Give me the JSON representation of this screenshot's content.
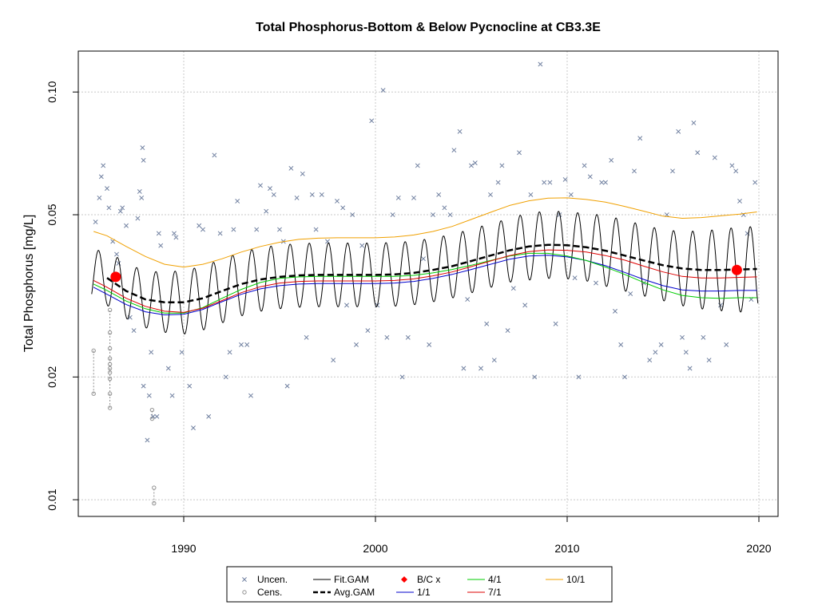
{
  "chart_data": {
    "type": "line",
    "title": "Total Phosphorus-Bottom & Below Pycnocline at CB3.3E",
    "xlabel": "",
    "ylabel": "Total Phosphorus [mg/L]",
    "xlim": [
      1984.5,
      2021.0
    ],
    "ylim": [
      0.0091,
      0.126
    ],
    "log_y": true,
    "grid": true,
    "x_ticks": [
      1990,
      2000,
      2010,
      2020
    ],
    "x_tick_labels": [
      "1990",
      "2000",
      "2010",
      "2020"
    ],
    "y_ticks": [
      0.01,
      0.02,
      0.05,
      0.1
    ],
    "y_tick_labels": [
      "0.01",
      "0.02",
      "0.05",
      "0.10"
    ],
    "legend_position": "bottom",
    "legend": [
      {
        "key": "uncen",
        "label": "Uncen.",
        "style": "x-marker",
        "color": "#7080A0"
      },
      {
        "key": "cens",
        "label": "Cens.",
        "style": "o-marker",
        "color": "#909090"
      },
      {
        "key": "fit",
        "label": "Fit.GAM",
        "style": "line",
        "color": "#000000"
      },
      {
        "key": "avg",
        "label": "Avg.GAM",
        "style": "dashed",
        "color": "#000000"
      },
      {
        "key": "bc",
        "label": "B/C x",
        "style": "diamond",
        "color": "#FF0000"
      },
      {
        "key": "s11",
        "label": "1/1",
        "style": "line",
        "color": "#0000CC"
      },
      {
        "key": "s41",
        "label": "4/1",
        "style": "line",
        "color": "#00CC00"
      },
      {
        "key": "s71",
        "label": "7/1",
        "style": "line",
        "color": "#DD0000"
      },
      {
        "key": "s101",
        "label": "10/1",
        "style": "line",
        "color": "#F0A000"
      }
    ],
    "series": [
      {
        "name": "10/1",
        "color": "#F0A000",
        "x": [
          1985.3,
          1986,
          1987,
          1988,
          1989,
          1990,
          1991,
          1992,
          1993,
          1994,
          1995,
          1996,
          1997,
          1998,
          1999,
          2000,
          2001,
          2002,
          2003,
          2004,
          2005,
          2006,
          2007,
          2008,
          2009,
          2010,
          2011,
          2012,
          2013,
          2014,
          2015,
          2016,
          2017,
          2018,
          2019,
          2019.9
        ],
        "y": [
          0.0455,
          0.0444,
          0.0418,
          0.0395,
          0.0378,
          0.0372,
          0.0378,
          0.039,
          0.0405,
          0.0418,
          0.0428,
          0.0435,
          0.0438,
          0.0439,
          0.0439,
          0.0439,
          0.0441,
          0.0446,
          0.0455,
          0.0468,
          0.0487,
          0.0507,
          0.0527,
          0.0541,
          0.0549,
          0.055,
          0.0545,
          0.0537,
          0.0524,
          0.051,
          0.0496,
          0.049,
          0.0492,
          0.0497,
          0.0502,
          0.0508
        ]
      },
      {
        "name": "7/1",
        "color": "#DD0000",
        "x": [
          1985.3,
          1986,
          1987,
          1988,
          1989,
          1990,
          1991,
          1992,
          1993,
          1994,
          1995,
          1996,
          1997,
          1998,
          1999,
          2000,
          2001,
          2002,
          2003,
          2004,
          2005,
          2006,
          2007,
          2008,
          2009,
          2010,
          2011,
          2012,
          2013,
          2014,
          2015,
          2016,
          2017,
          2018,
          2019,
          2019.9
        ],
        "y": [
          0.0345,
          0.0332,
          0.0312,
          0.0298,
          0.029,
          0.0288,
          0.0295,
          0.0308,
          0.0322,
          0.0333,
          0.034,
          0.0343,
          0.0344,
          0.0344,
          0.0344,
          0.0344,
          0.0345,
          0.0348,
          0.0354,
          0.0362,
          0.0373,
          0.0385,
          0.0397,
          0.0406,
          0.041,
          0.0409,
          0.0405,
          0.0397,
          0.0387,
          0.0374,
          0.0362,
          0.0353,
          0.035,
          0.035,
          0.0351,
          0.0352
        ]
      },
      {
        "name": "4/1",
        "color": "#00CC00",
        "x": [
          1985.3,
          1986,
          1987,
          1988,
          1989,
          1990,
          1991,
          1992,
          1993,
          1994,
          1995,
          1996,
          1997,
          1998,
          1999,
          2000,
          2001,
          2002,
          2003,
          2004,
          2005,
          2006,
          2007,
          2008,
          2009,
          2010,
          2011,
          2012,
          2013,
          2014,
          2015,
          2016,
          2017,
          2018,
          2019,
          2019.9
        ],
        "y": [
          0.0338,
          0.0326,
          0.0307,
          0.0294,
          0.0287,
          0.0287,
          0.0296,
          0.0312,
          0.0328,
          0.0341,
          0.0349,
          0.0352,
          0.0353,
          0.0353,
          0.0353,
          0.0353,
          0.0353,
          0.0355,
          0.036,
          0.0367,
          0.0376,
          0.0386,
          0.0396,
          0.0402,
          0.0402,
          0.0396,
          0.0386,
          0.0372,
          0.0357,
          0.0341,
          0.0327,
          0.0317,
          0.0313,
          0.0312,
          0.0313,
          0.0313
        ]
      },
      {
        "name": "1/1",
        "color": "#0000CC",
        "x": [
          1985.3,
          1986,
          1987,
          1988,
          1989,
          1990,
          1991,
          1992,
          1993,
          1994,
          1995,
          1996,
          1997,
          1998,
          1999,
          2000,
          2001,
          2002,
          2003,
          2004,
          2005,
          2006,
          2007,
          2008,
          2009,
          2010,
          2011,
          2012,
          2013,
          2014,
          2015,
          2016,
          2017,
          2018,
          2019,
          2019.9
        ],
        "y": [
          0.0332,
          0.0319,
          0.0301,
          0.0289,
          0.0284,
          0.0285,
          0.0293,
          0.0306,
          0.0319,
          0.0329,
          0.0335,
          0.0338,
          0.0339,
          0.0339,
          0.0339,
          0.0339,
          0.034,
          0.0343,
          0.0349,
          0.0357,
          0.0367,
          0.0378,
          0.0389,
          0.0396,
          0.0398,
          0.0394,
          0.0386,
          0.0375,
          0.0361,
          0.0347,
          0.0335,
          0.0327,
          0.0325,
          0.0325,
          0.0326,
          0.0326
        ]
      },
      {
        "name": "Avg.GAM",
        "color": "#000000",
        "x": [
          1986,
          1987,
          1988,
          1989,
          1990,
          1991,
          1992,
          1993,
          1994,
          1995,
          1996,
          1997,
          1998,
          1999,
          2000,
          2001,
          2002,
          2003,
          2004,
          2005,
          2006,
          2007,
          2008,
          2009,
          2010,
          2011,
          2012,
          2013,
          2014,
          2015,
          2016,
          2017,
          2018,
          2019,
          2019.9
        ],
        "y": [
          0.035,
          0.0325,
          0.031,
          0.0305,
          0.0305,
          0.0312,
          0.0325,
          0.0338,
          0.0347,
          0.0352,
          0.0355,
          0.0356,
          0.0356,
          0.0356,
          0.0356,
          0.0357,
          0.036,
          0.0366,
          0.0374,
          0.0385,
          0.0397,
          0.0409,
          0.0418,
          0.0422,
          0.0421,
          0.0416,
          0.0408,
          0.0397,
          0.0386,
          0.0376,
          0.0369,
          0.0366,
          0.0366,
          0.0367,
          0.0368
        ]
      },
      {
        "name": "Fit.GAM",
        "color": "#000000",
        "amplitude": [
          0.155,
          0.155,
          0.16,
          0.17,
          0.18,
          0.18,
          0.18,
          0.18,
          0.18,
          0.18,
          0.18,
          0.18,
          0.18,
          0.18,
          0.18,
          0.18,
          0.18,
          0.18,
          0.18,
          0.18,
          0.18,
          0.18,
          0.19,
          0.19,
          0.19,
          0.19,
          0.2,
          0.2,
          0.2,
          0.2,
          0.21,
          0.22,
          0.23,
          0.24,
          0.24
        ],
        "peak_fraction": 0.55,
        "x_range": [
          1985.2,
          2019.95
        ]
      }
    ],
    "bc_points": [
      {
        "x": 1986.45,
        "y": 0.0352
      },
      {
        "x": 2018.85,
        "y": 0.0366
      }
    ],
    "uncensored_points": [
      {
        "x": 1985.4,
        "y": 0.048
      },
      {
        "x": 1985.6,
        "y": 0.055
      },
      {
        "x": 1985.7,
        "y": 0.062
      },
      {
        "x": 1985.8,
        "y": 0.066
      },
      {
        "x": 1986.0,
        "y": 0.058
      },
      {
        "x": 1986.1,
        "y": 0.052
      },
      {
        "x": 1986.3,
        "y": 0.043
      },
      {
        "x": 1986.5,
        "y": 0.04
      },
      {
        "x": 1986.6,
        "y": 0.038
      },
      {
        "x": 1986.7,
        "y": 0.051
      },
      {
        "x": 1986.8,
        "y": 0.052
      },
      {
        "x": 1987.0,
        "y": 0.047
      },
      {
        "x": 1987.2,
        "y": 0.028
      },
      {
        "x": 1987.4,
        "y": 0.026
      },
      {
        "x": 1987.6,
        "y": 0.049
      },
      {
        "x": 1987.7,
        "y": 0.057
      },
      {
        "x": 1987.8,
        "y": 0.055
      },
      {
        "x": 1987.85,
        "y": 0.073
      },
      {
        "x": 1987.9,
        "y": 0.068
      },
      {
        "x": 1987.9,
        "y": 0.019
      },
      {
        "x": 1988.1,
        "y": 0.014
      },
      {
        "x": 1988.2,
        "y": 0.018
      },
      {
        "x": 1988.3,
        "y": 0.023
      },
      {
        "x": 1988.4,
        "y": 0.016
      },
      {
        "x": 1988.6,
        "y": 0.016
      },
      {
        "x": 1988.7,
        "y": 0.045
      },
      {
        "x": 1988.8,
        "y": 0.042
      },
      {
        "x": 1989.2,
        "y": 0.021
      },
      {
        "x": 1989.4,
        "y": 0.018
      },
      {
        "x": 1989.5,
        "y": 0.045
      },
      {
        "x": 1989.6,
        "y": 0.044
      },
      {
        "x": 1989.9,
        "y": 0.023
      },
      {
        "x": 1990.3,
        "y": 0.019
      },
      {
        "x": 1990.5,
        "y": 0.015
      },
      {
        "x": 1990.8,
        "y": 0.047
      },
      {
        "x": 1991.0,
        "y": 0.046
      },
      {
        "x": 1991.3,
        "y": 0.016
      },
      {
        "x": 1991.6,
        "y": 0.07
      },
      {
        "x": 1991.9,
        "y": 0.045
      },
      {
        "x": 1992.2,
        "y": 0.02
      },
      {
        "x": 1992.4,
        "y": 0.023
      },
      {
        "x": 1992.6,
        "y": 0.046
      },
      {
        "x": 1992.8,
        "y": 0.054
      },
      {
        "x": 1993.0,
        "y": 0.024
      },
      {
        "x": 1993.3,
        "y": 0.024
      },
      {
        "x": 1993.5,
        "y": 0.018
      },
      {
        "x": 1993.8,
        "y": 0.046
      },
      {
        "x": 1994.0,
        "y": 0.059
      },
      {
        "x": 1994.3,
        "y": 0.051
      },
      {
        "x": 1994.5,
        "y": 0.058
      },
      {
        "x": 1994.7,
        "y": 0.056
      },
      {
        "x": 1995.0,
        "y": 0.046
      },
      {
        "x": 1995.2,
        "y": 0.043
      },
      {
        "x": 1995.4,
        "y": 0.019
      },
      {
        "x": 1995.6,
        "y": 0.065
      },
      {
        "x": 1995.9,
        "y": 0.055
      },
      {
        "x": 1996.2,
        "y": 0.063
      },
      {
        "x": 1996.4,
        "y": 0.025
      },
      {
        "x": 1996.7,
        "y": 0.056
      },
      {
        "x": 1996.9,
        "y": 0.046
      },
      {
        "x": 1997.2,
        "y": 0.056
      },
      {
        "x": 1997.5,
        "y": 0.043
      },
      {
        "x": 1997.8,
        "y": 0.022
      },
      {
        "x": 1998.0,
        "y": 0.054
      },
      {
        "x": 1998.3,
        "y": 0.052
      },
      {
        "x": 1998.5,
        "y": 0.03
      },
      {
        "x": 1998.8,
        "y": 0.05
      },
      {
        "x": 1999.0,
        "y": 0.024
      },
      {
        "x": 1999.3,
        "y": 0.042
      },
      {
        "x": 1999.6,
        "y": 0.026
      },
      {
        "x": 1999.8,
        "y": 0.085
      },
      {
        "x": 2000.1,
        "y": 0.03
      },
      {
        "x": 2000.4,
        "y": 0.101
      },
      {
        "x": 2000.6,
        "y": 0.025
      },
      {
        "x": 2000.9,
        "y": 0.05
      },
      {
        "x": 2001.2,
        "y": 0.055
      },
      {
        "x": 2001.4,
        "y": 0.02
      },
      {
        "x": 2001.7,
        "y": 0.025
      },
      {
        "x": 2002.0,
        "y": 0.055
      },
      {
        "x": 2002.2,
        "y": 0.066
      },
      {
        "x": 2002.5,
        "y": 0.039
      },
      {
        "x": 2002.8,
        "y": 0.024
      },
      {
        "x": 2003.0,
        "y": 0.05
      },
      {
        "x": 2003.3,
        "y": 0.056
      },
      {
        "x": 2003.6,
        "y": 0.052
      },
      {
        "x": 2003.9,
        "y": 0.05
      },
      {
        "x": 2004.1,
        "y": 0.072
      },
      {
        "x": 2004.4,
        "y": 0.08
      },
      {
        "x": 2004.6,
        "y": 0.021
      },
      {
        "x": 2004.8,
        "y": 0.031
      },
      {
        "x": 2005.0,
        "y": 0.066
      },
      {
        "x": 2005.2,
        "y": 0.067
      },
      {
        "x": 2005.5,
        "y": 0.021
      },
      {
        "x": 2005.8,
        "y": 0.027
      },
      {
        "x": 2006.0,
        "y": 0.056
      },
      {
        "x": 2006.2,
        "y": 0.022
      },
      {
        "x": 2006.4,
        "y": 0.06
      },
      {
        "x": 2006.6,
        "y": 0.066
      },
      {
        "x": 2006.9,
        "y": 0.026
      },
      {
        "x": 2007.2,
        "y": 0.033
      },
      {
        "x": 2007.5,
        "y": 0.071
      },
      {
        "x": 2007.8,
        "y": 0.03
      },
      {
        "x": 2008.1,
        "y": 0.056
      },
      {
        "x": 2008.3,
        "y": 0.02
      },
      {
        "x": 2008.6,
        "y": 0.117
      },
      {
        "x": 2008.8,
        "y": 0.06
      },
      {
        "x": 2009.1,
        "y": 0.06
      },
      {
        "x": 2009.4,
        "y": 0.027
      },
      {
        "x": 2009.6,
        "y": 0.05
      },
      {
        "x": 2009.9,
        "y": 0.061
      },
      {
        "x": 2010.2,
        "y": 0.056
      },
      {
        "x": 2010.4,
        "y": 0.035
      },
      {
        "x": 2010.6,
        "y": 0.02
      },
      {
        "x": 2010.9,
        "y": 0.066
      },
      {
        "x": 2011.2,
        "y": 0.062
      },
      {
        "x": 2011.5,
        "y": 0.034
      },
      {
        "x": 2011.8,
        "y": 0.06
      },
      {
        "x": 2012.0,
        "y": 0.06
      },
      {
        "x": 2012.3,
        "y": 0.068
      },
      {
        "x": 2012.5,
        "y": 0.029
      },
      {
        "x": 2012.8,
        "y": 0.024
      },
      {
        "x": 2013.0,
        "y": 0.02
      },
      {
        "x": 2013.3,
        "y": 0.032
      },
      {
        "x": 2013.5,
        "y": 0.064
      },
      {
        "x": 2013.8,
        "y": 0.077
      },
      {
        "x": 2014.0,
        "y": 0.034
      },
      {
        "x": 2014.3,
        "y": 0.022
      },
      {
        "x": 2014.6,
        "y": 0.023
      },
      {
        "x": 2014.9,
        "y": 0.024
      },
      {
        "x": 2015.2,
        "y": 0.05
      },
      {
        "x": 2015.5,
        "y": 0.064
      },
      {
        "x": 2015.8,
        "y": 0.08
      },
      {
        "x": 2016.0,
        "y": 0.025
      },
      {
        "x": 2016.2,
        "y": 0.023
      },
      {
        "x": 2016.4,
        "y": 0.021
      },
      {
        "x": 2016.6,
        "y": 0.084
      },
      {
        "x": 2016.8,
        "y": 0.071
      },
      {
        "x": 2017.1,
        "y": 0.025
      },
      {
        "x": 2017.4,
        "y": 0.022
      },
      {
        "x": 2017.7,
        "y": 0.069
      },
      {
        "x": 2018.0,
        "y": 0.03
      },
      {
        "x": 2018.3,
        "y": 0.024
      },
      {
        "x": 2018.6,
        "y": 0.066
      },
      {
        "x": 2018.8,
        "y": 0.064
      },
      {
        "x": 2019.0,
        "y": 0.054
      },
      {
        "x": 2019.2,
        "y": 0.05
      },
      {
        "x": 2019.4,
        "y": 0.045
      },
      {
        "x": 2019.6,
        "y": 0.031
      },
      {
        "x": 2019.8,
        "y": 0.06
      }
    ],
    "censored_points": [
      {
        "x": 1985.3,
        "y": 0.0232
      },
      {
        "x": 1985.3,
        "y": 0.0182
      },
      {
        "x": 1986.15,
        "y": 0.0292
      },
      {
        "x": 1986.15,
        "y": 0.0257
      },
      {
        "x": 1986.15,
        "y": 0.0235
      },
      {
        "x": 1986.15,
        "y": 0.0222
      },
      {
        "x": 1986.15,
        "y": 0.0215
      },
      {
        "x": 1986.15,
        "y": 0.021
      },
      {
        "x": 1986.15,
        "y": 0.0205
      },
      {
        "x": 1986.15,
        "y": 0.0198
      },
      {
        "x": 1986.15,
        "y": 0.0182
      },
      {
        "x": 1986.15,
        "y": 0.0168
      },
      {
        "x": 1988.35,
        "y": 0.0166
      },
      {
        "x": 1988.35,
        "y": 0.0158
      },
      {
        "x": 1988.45,
        "y": 0.0107
      },
      {
        "x": 1988.45,
        "y": 0.0098
      }
    ],
    "censored_ranges": [
      {
        "x": 1985.3,
        "y1": 0.0182,
        "y2": 0.0232
      },
      {
        "x": 1986.15,
        "y1": 0.0168,
        "y2": 0.0292
      },
      {
        "x": 1988.35,
        "y1": 0.0158,
        "y2": 0.0166
      },
      {
        "x": 1988.45,
        "y1": 0.0098,
        "y2": 0.0107
      }
    ]
  }
}
